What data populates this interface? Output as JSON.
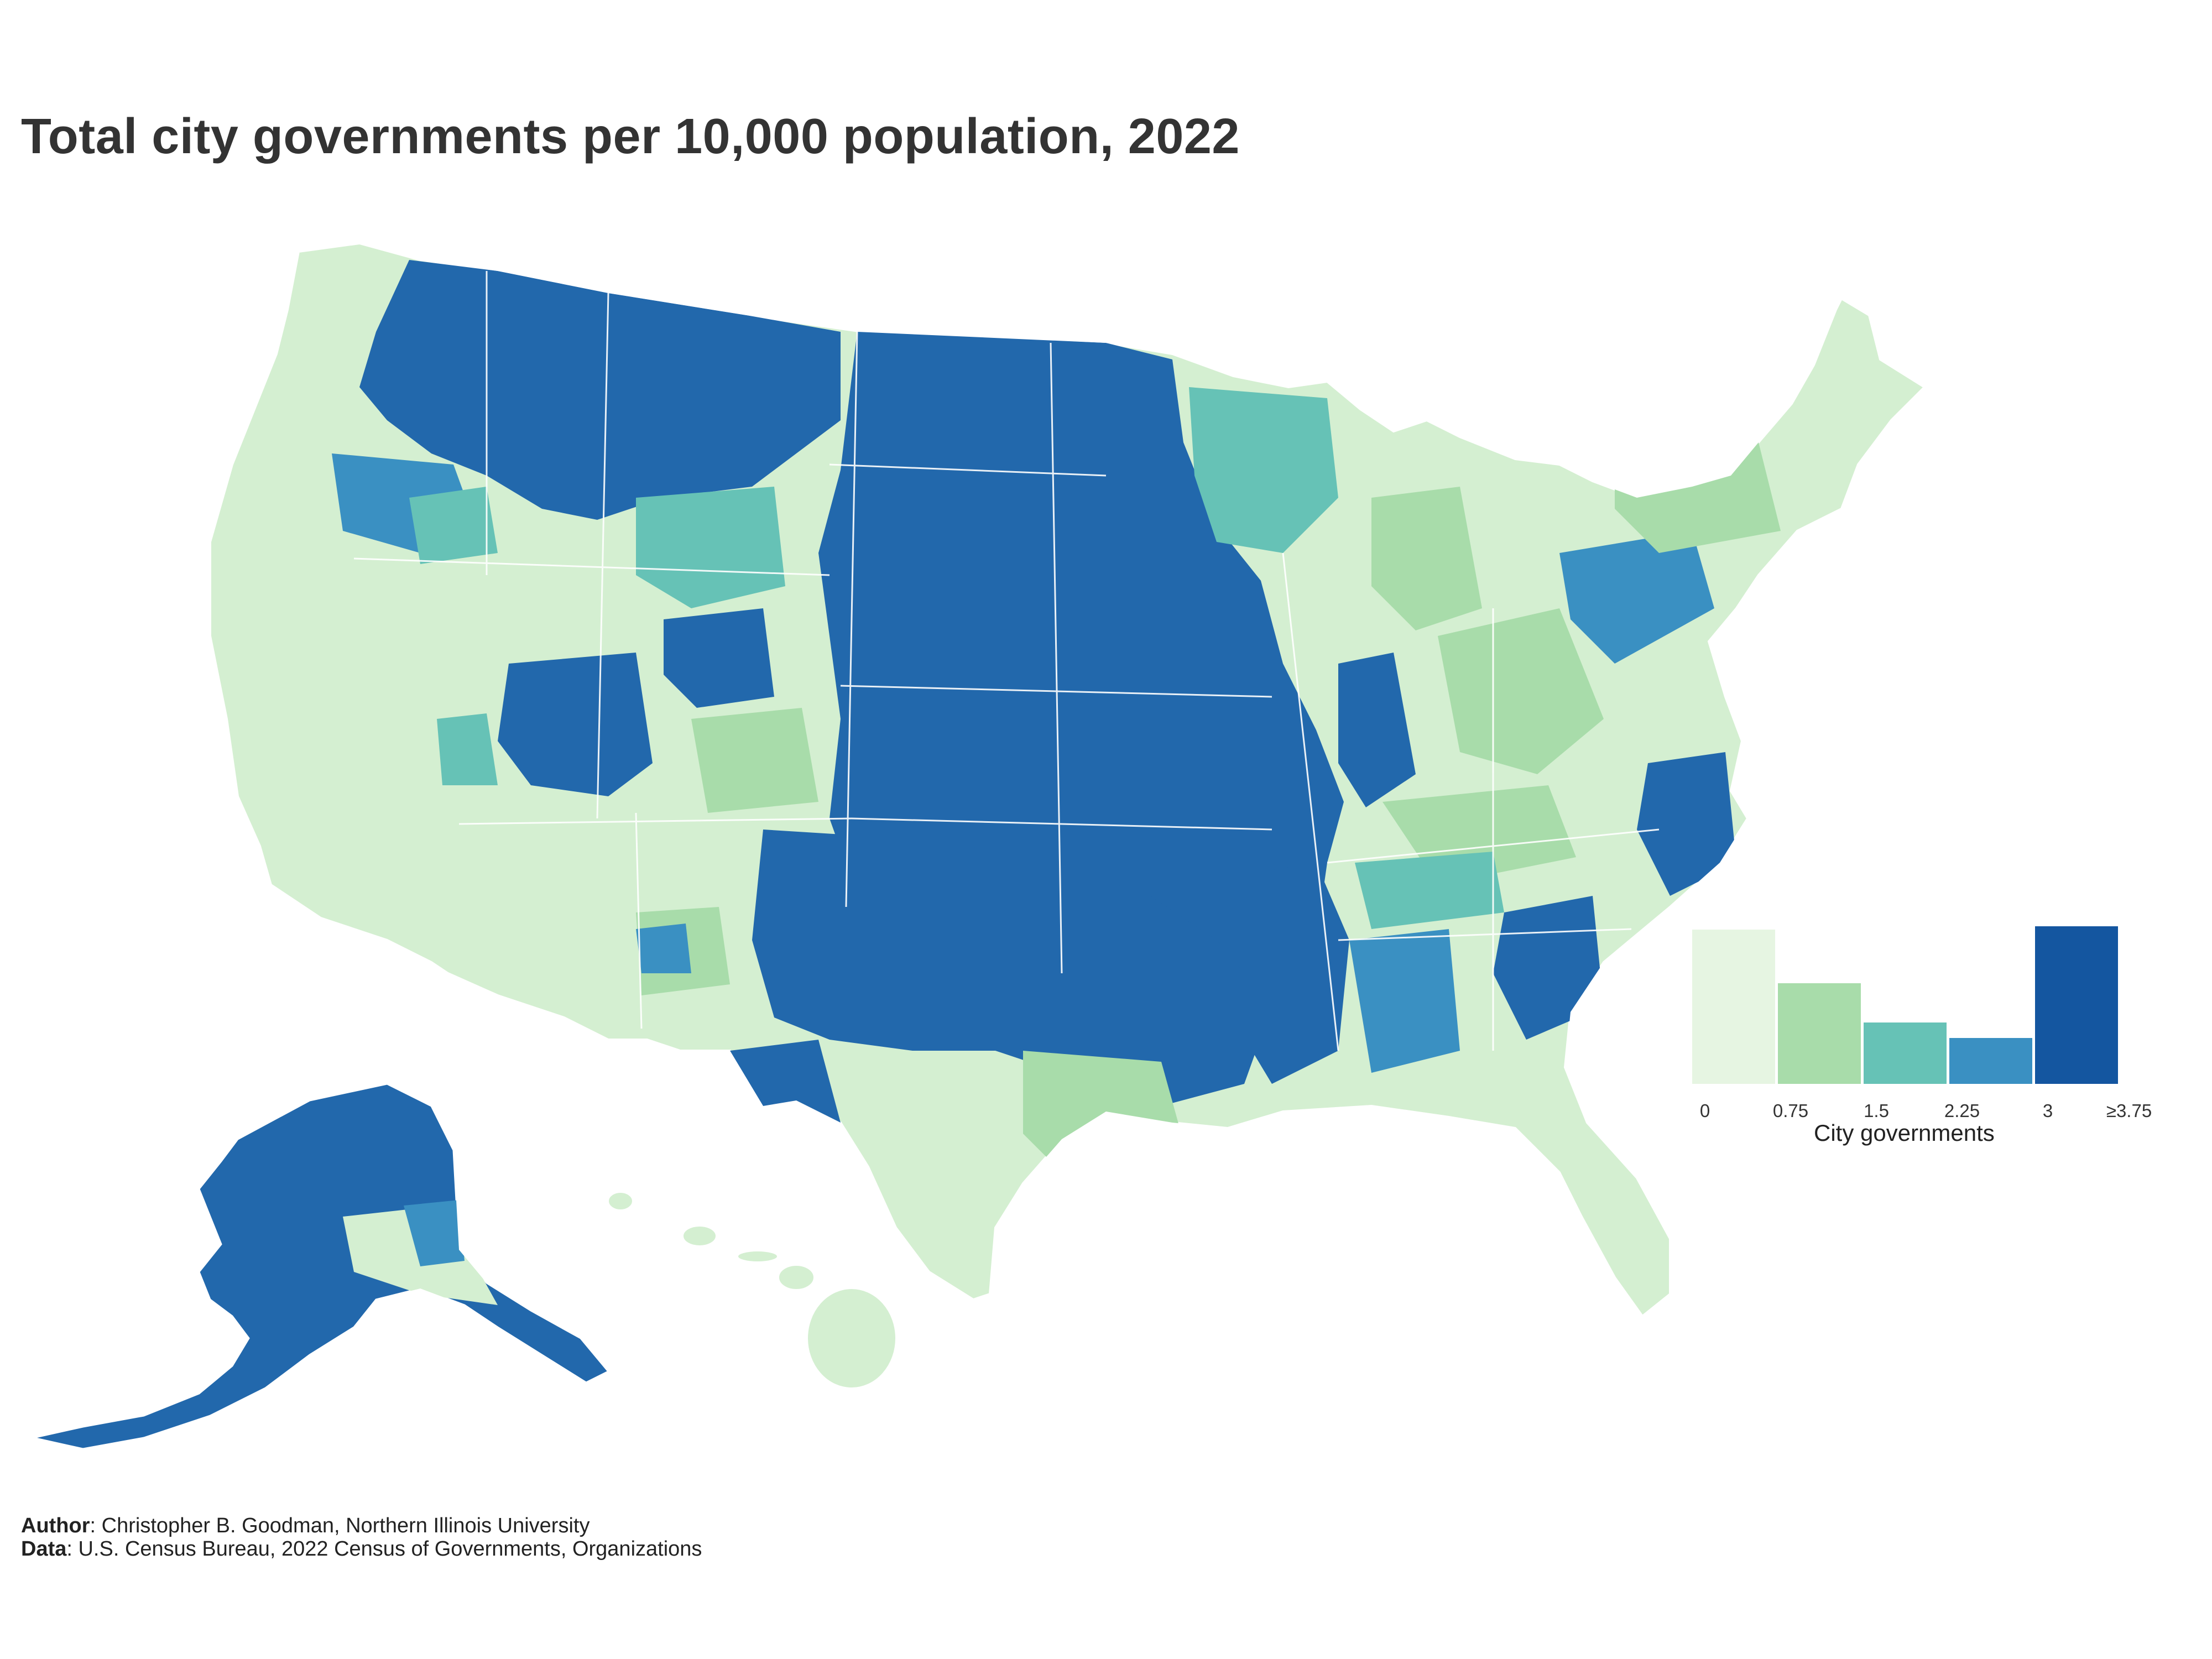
{
  "title": "Total city governments per 10,000 population, 2022",
  "legend": {
    "title": "City governments",
    "ticks": [
      "0",
      "0.75",
      "1.5",
      "2.25",
      "3",
      "≥3.75"
    ],
    "bins": [
      {
        "range": "0–0.75",
        "color": "#e6f5e2",
        "share": 0.98
      },
      {
        "range": "0.75–1.5",
        "color": "#a8dcaa",
        "share": 0.64
      },
      {
        "range": "1.5–2.25",
        "color": "#66c2b6",
        "share": 0.39
      },
      {
        "range": "2.25–3",
        "color": "#3a90c2",
        "share": 0.29
      },
      {
        "range": "≥3.75",
        "color": "#1456a0",
        "share": 1.0
      }
    ]
  },
  "map_colors": {
    "lowest": "#d4efd1",
    "low": "#a8dcaa",
    "mid": "#66c2b6",
    "high": "#3a90c2",
    "highest": "#2268ac",
    "border": "#ffffff"
  },
  "footer": {
    "author_label": "Author",
    "author_text": ": Christopher B. Goodman, Northern Illinois University",
    "data_label": "Data",
    "data_text": ": U.S. Census Bureau, 2022 Census of Governments, Organizations"
  }
}
